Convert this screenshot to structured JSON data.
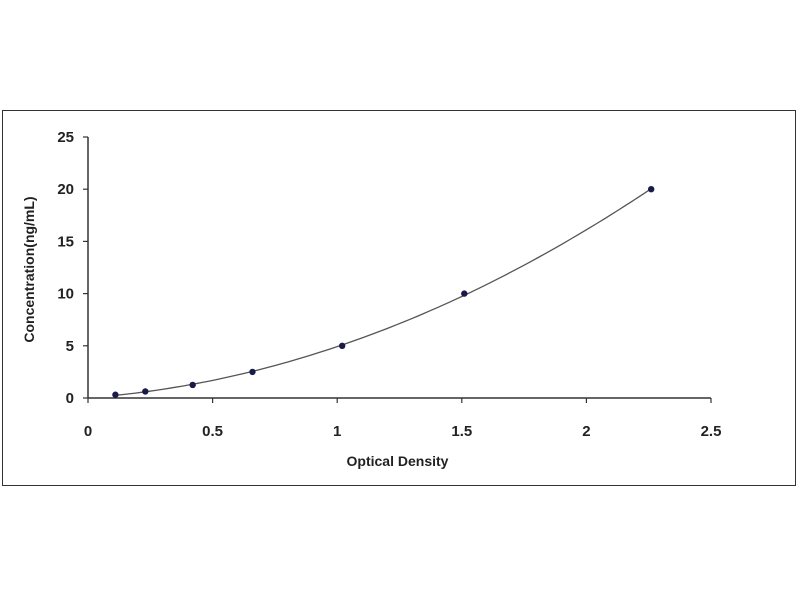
{
  "chart_data": {
    "type": "scatter",
    "title": "",
    "xlabel": "Optical Density",
    "ylabel": "Concentration(ng/mL)",
    "xlim": [
      0,
      2.5
    ],
    "ylim": [
      0,
      25
    ],
    "x_ticks": [
      "0",
      "0.5",
      "1",
      "1.5",
      "2",
      "2.5"
    ],
    "y_ticks": [
      "0",
      "5",
      "10",
      "15",
      "20",
      "25"
    ],
    "grid": false,
    "legend": "none",
    "fit_curve": "smooth polynomial fit through points",
    "colors": {
      "marker": "#1a1a4a",
      "curve": "#555555",
      "axis": "#333333",
      "frame": "#333333"
    },
    "series": [
      {
        "x": [
          0.11,
          0.23,
          0.42,
          0.66,
          1.02,
          1.51,
          2.26
        ],
        "y": [
          0.312,
          0.625,
          1.25,
          2.5,
          5,
          10,
          20
        ]
      }
    ]
  }
}
